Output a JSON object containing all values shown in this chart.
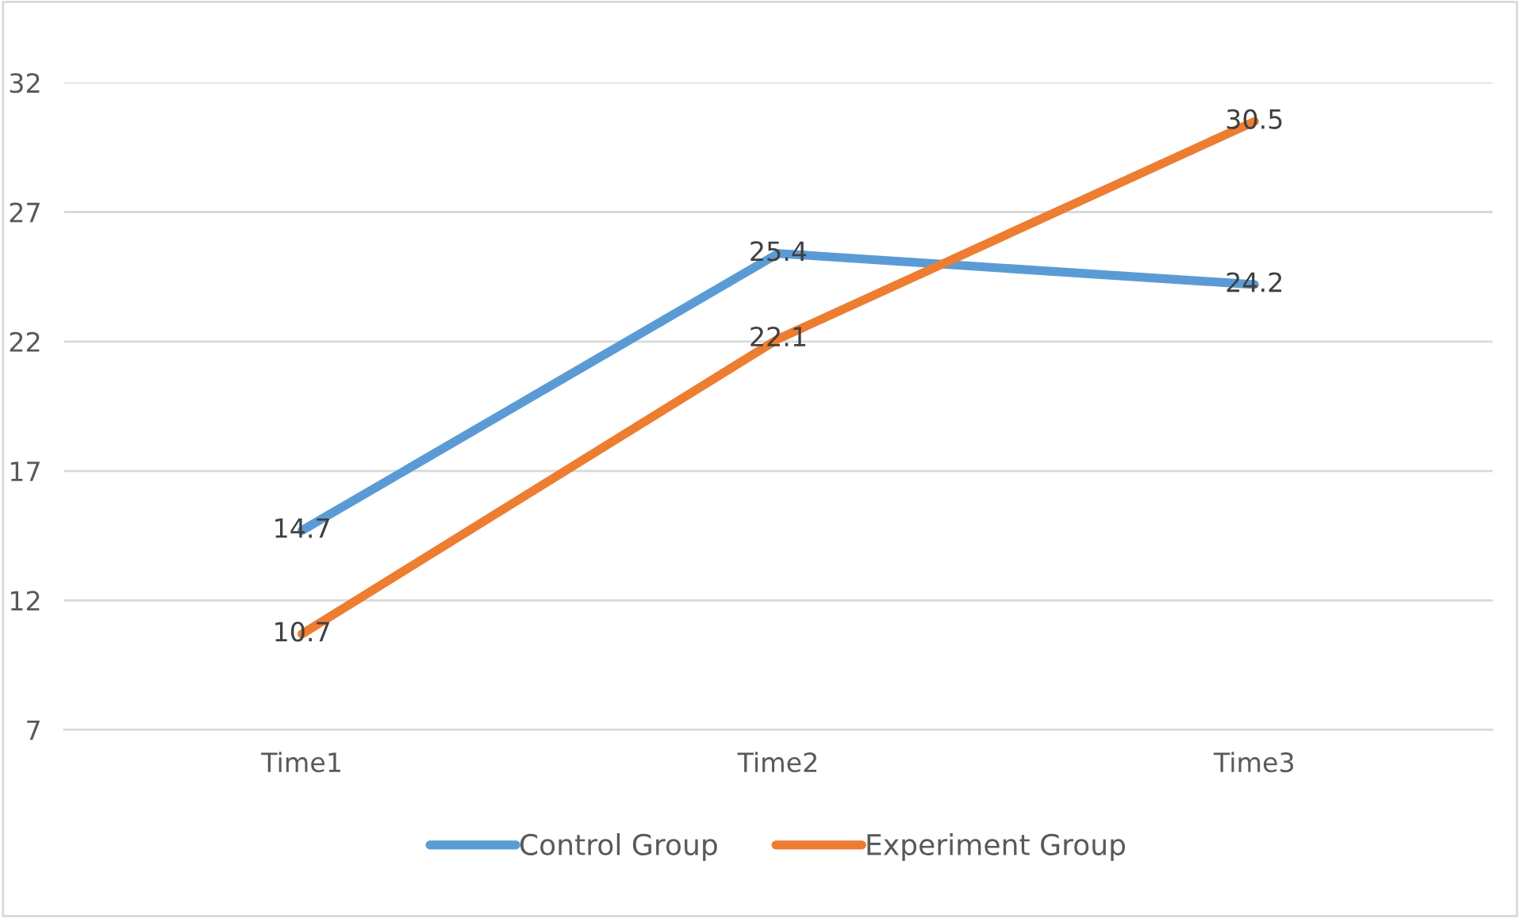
{
  "chart_data": {
    "type": "line",
    "categories": [
      "Time1",
      "Time2",
      "Time3"
    ],
    "series": [
      {
        "name": "Control Group",
        "color": "#5b9bd5",
        "values": [
          14.7,
          25.4,
          24.2
        ]
      },
      {
        "name": "Experiment Group",
        "color": "#ed7d31",
        "values": [
          10.7,
          22.1,
          30.5
        ]
      }
    ],
    "ylim": [
      7,
      32
    ],
    "yticks": [
      7,
      12,
      17,
      22,
      27,
      32
    ],
    "grid": "y",
    "legend": "bottom",
    "data_labels": true,
    "marker": "none",
    "line_style": "solid"
  }
}
